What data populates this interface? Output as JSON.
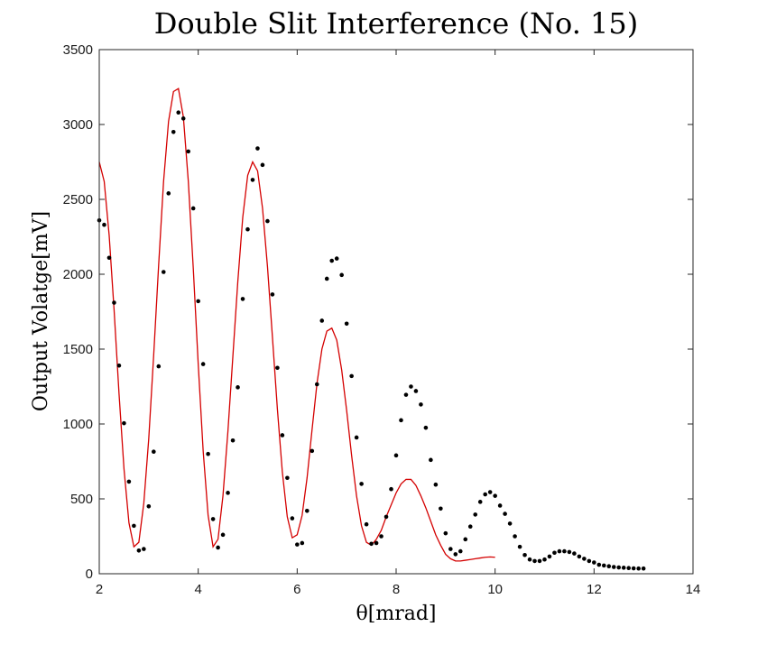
{
  "chart_data": {
    "type": "scatter",
    "title": "Double Slit Interference (No. 15)",
    "xlabel": "θ[mrad]",
    "ylabel": "Output Volatge[mV]",
    "xlim": [
      2,
      14
    ],
    "ylim": [
      0,
      3500
    ],
    "xticks": [
      2,
      4,
      6,
      8,
      10,
      12,
      14
    ],
    "yticks": [
      0,
      500,
      1000,
      1500,
      2000,
      2500,
      3000,
      3500
    ],
    "grid": false,
    "colors": {
      "measured": "#000000",
      "fit": "#d40000"
    },
    "series": [
      {
        "kind": "scatter",
        "x": [
          2.0,
          2.1,
          2.2,
          2.3,
          2.4,
          2.5,
          2.6,
          2.7,
          2.8,
          2.9,
          3.0,
          3.1,
          3.2,
          3.3,
          3.4,
          3.5,
          3.6,
          3.7,
          3.8,
          3.9,
          4.0,
          4.1,
          4.2,
          4.3,
          4.4,
          4.5,
          4.6,
          4.7,
          4.8,
          4.9,
          5.0,
          5.1,
          5.2,
          5.3,
          5.4,
          5.5,
          5.6,
          5.7,
          5.8,
          5.9,
          6.0,
          6.1,
          6.2,
          6.3,
          6.4,
          6.5,
          6.6,
          6.7,
          6.8,
          6.9,
          7.0,
          7.1,
          7.2,
          7.3,
          7.4,
          7.5,
          7.6,
          7.7,
          7.8,
          7.9,
          8.0,
          8.1,
          8.2,
          8.3,
          8.4,
          8.5,
          8.6,
          8.7,
          8.8,
          8.9,
          9.0,
          9.1,
          9.2,
          9.3,
          9.4,
          9.5,
          9.6,
          9.7,
          9.8,
          9.9,
          10.0,
          10.1,
          10.2,
          10.3,
          10.4,
          10.5,
          10.6,
          10.7,
          10.8,
          10.9,
          11.0,
          11.1,
          11.2,
          11.3,
          11.4,
          11.5,
          11.6,
          11.7,
          11.8,
          11.9,
          12.0,
          12.1,
          12.2,
          12.3,
          12.4,
          12.5,
          12.6,
          12.7,
          12.8,
          12.9,
          13.0
        ],
        "y": [
          2360,
          2330,
          2110,
          1810,
          1390,
          1005,
          615,
          320,
          155,
          165,
          450,
          815,
          1385,
          2015,
          2540,
          2950,
          3080,
          3040,
          2820,
          2440,
          1820,
          1400,
          800,
          365,
          175,
          260,
          540,
          890,
          1245,
          1835,
          2300,
          2630,
          2840,
          2730,
          2355,
          1865,
          1375,
          925,
          640,
          370,
          195,
          205,
          420,
          820,
          1265,
          1690,
          1970,
          2090,
          2105,
          1995,
          1670,
          1320,
          910,
          600,
          330,
          200,
          205,
          250,
          380,
          565,
          790,
          1025,
          1195,
          1250,
          1220,
          1130,
          975,
          760,
          595,
          435,
          270,
          165,
          130,
          150,
          230,
          315,
          395,
          480,
          530,
          545,
          520,
          455,
          400,
          335,
          250,
          180,
          125,
          95,
          85,
          85,
          95,
          115,
          140,
          150,
          150,
          145,
          135,
          115,
          100,
          85,
          75,
          60,
          55,
          50,
          45,
          42,
          40,
          38,
          36,
          35,
          35
        ]
      },
      {
        "kind": "line",
        "x": [
          2.0,
          2.1,
          2.2,
          2.3,
          2.4,
          2.5,
          2.6,
          2.7,
          2.8,
          2.9,
          3.0,
          3.1,
          3.2,
          3.3,
          3.4,
          3.5,
          3.6,
          3.7,
          3.8,
          3.9,
          4.0,
          4.1,
          4.2,
          4.3,
          4.4,
          4.5,
          4.6,
          4.7,
          4.8,
          4.9,
          5.0,
          5.1,
          5.2,
          5.3,
          5.4,
          5.5,
          5.6,
          5.7,
          5.8,
          5.9,
          6.0,
          6.1,
          6.2,
          6.3,
          6.4,
          6.5,
          6.6,
          6.7,
          6.8,
          6.9,
          7.0,
          7.1,
          7.2,
          7.3,
          7.4,
          7.5,
          7.6,
          7.7,
          7.8,
          7.9,
          8.0,
          8.1,
          8.2,
          8.3,
          8.4,
          8.5,
          8.6,
          8.7,
          8.8,
          8.9,
          9.0,
          9.1,
          9.2,
          9.3,
          9.4,
          9.5,
          9.6,
          9.7,
          9.8,
          9.9,
          10.0
        ],
        "y": [
          2750,
          2620,
          2260,
          1760,
          1200,
          700,
          340,
          180,
          210,
          470,
          900,
          1460,
          2060,
          2620,
          3020,
          3220,
          3240,
          3050,
          2620,
          2040,
          1400,
          820,
          390,
          180,
          230,
          520,
          950,
          1450,
          1950,
          2380,
          2660,
          2750,
          2690,
          2440,
          2050,
          1580,
          1100,
          680,
          380,
          240,
          260,
          390,
          640,
          960,
          1270,
          1500,
          1620,
          1640,
          1560,
          1360,
          1090,
          790,
          520,
          320,
          210,
          190,
          230,
          290,
          380,
          460,
          540,
          600,
          630,
          630,
          590,
          520,
          440,
          350,
          260,
          190,
          130,
          100,
          85,
          85,
          90,
          95,
          100,
          105,
          110,
          112,
          110
        ]
      }
    ]
  }
}
